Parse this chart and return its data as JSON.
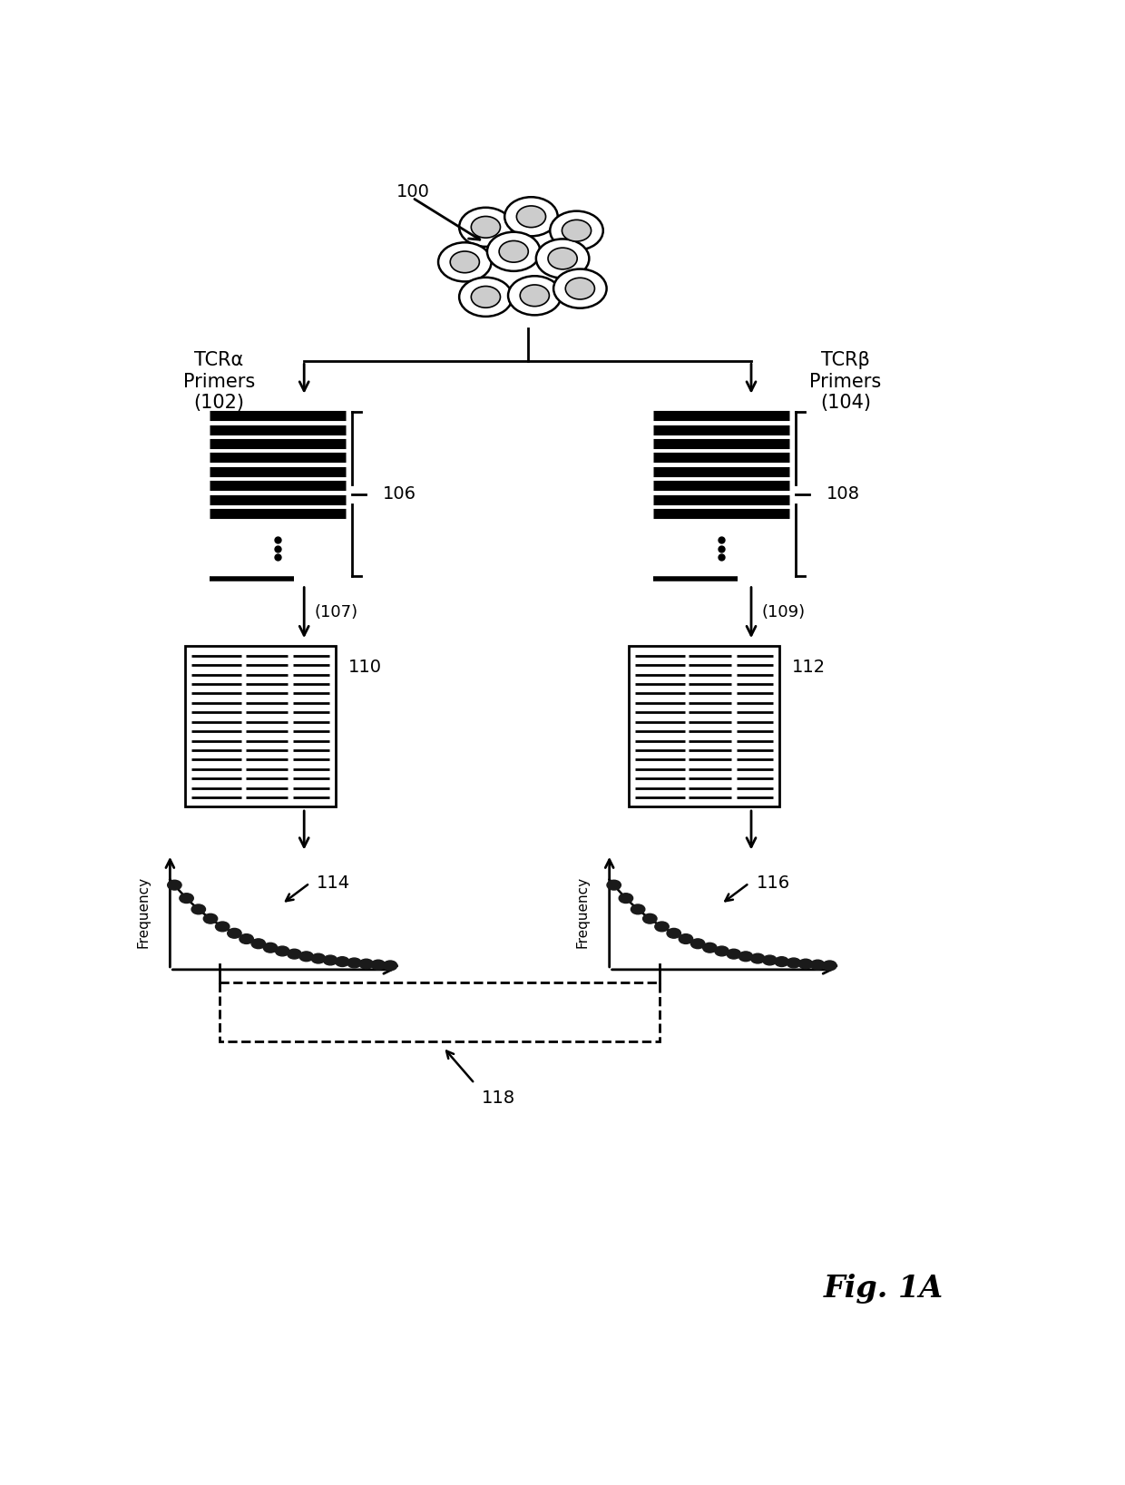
{
  "fig_width": 12.4,
  "fig_height": 16.37,
  "bg_color": "#ffffff",
  "text_color": "#000000",
  "label_100": "100",
  "label_tcra": "TCRα\nPrimers\n(102)",
  "label_tcrb": "TCRβ\nPrimers\n(104)",
  "label_106": "106",
  "label_108": "108",
  "label_107": "(107)",
  "label_109": "(109)",
  "label_110": "110",
  "label_112": "112",
  "label_114": "114",
  "label_116": "116",
  "label_118": "118",
  "label_freq": "Frequency",
  "label_fig": "Fig. 1A"
}
